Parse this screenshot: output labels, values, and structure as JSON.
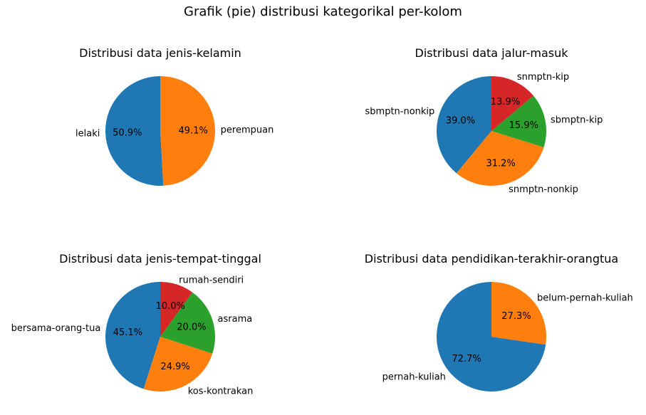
{
  "suptitle": "Grafik (pie) distribusi kategorikal per-kolom",
  "colors": [
    "#1f77b4",
    "#ff7f0e",
    "#2ca02c",
    "#d62728"
  ],
  "chart_data": [
    {
      "type": "pie",
      "title": "Distribusi data jenis-kelamin",
      "labels": [
        "lelaki",
        "perempuan"
      ],
      "values": [
        50.9,
        49.1
      ],
      "pct_labels": [
        "50.9%",
        "49.1%"
      ]
    },
    {
      "type": "pie",
      "title": "Distribusi data jalur-masuk",
      "labels": [
        "sbmptn-nonkip",
        "snmptn-nonkip",
        "sbmptn-kip",
        "snmptn-kip"
      ],
      "values": [
        39.0,
        31.2,
        15.9,
        13.9
      ],
      "pct_labels": [
        "39.0%",
        "31.2%",
        "15.9%",
        "13.9%"
      ]
    },
    {
      "type": "pie",
      "title": "Distribusi data jenis-tempat-tinggal",
      "labels": [
        "bersama-orang-tua",
        "kos-kontrakan",
        "asrama",
        "rumah-sendiri"
      ],
      "values": [
        45.1,
        24.9,
        20.0,
        10.0
      ],
      "pct_labels": [
        "45.1%",
        "24.9%",
        "20.0%",
        "10.0%"
      ]
    },
    {
      "type": "pie",
      "title": "Distribusi data pendidikan-terakhir-orangtua",
      "labels": [
        "pernah-kuliah",
        "belum-pernah-kuliah"
      ],
      "values": [
        72.7,
        27.3
      ],
      "pct_labels": [
        "72.7%",
        "27.3%"
      ]
    }
  ]
}
